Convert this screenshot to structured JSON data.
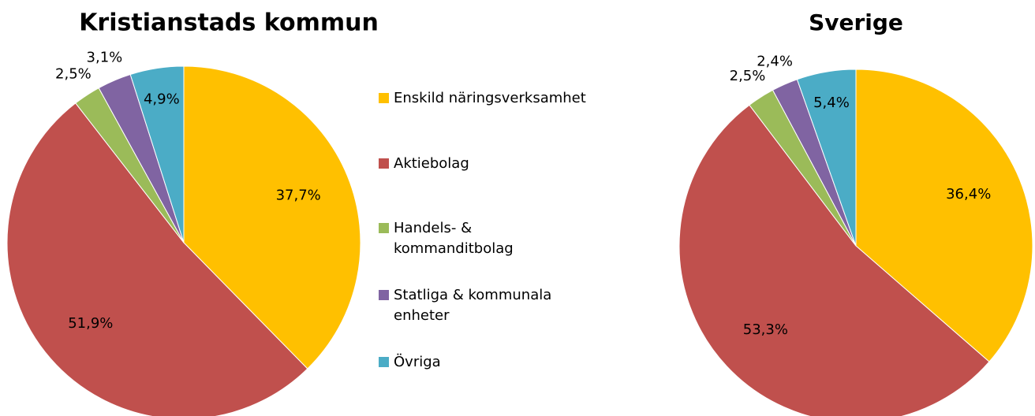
{
  "chart_data": [
    {
      "type": "pie",
      "title": "Kristianstads kommun",
      "values": [
        37.7,
        51.9,
        2.5,
        3.1,
        4.9
      ],
      "value_labels": [
        "37,7%",
        "51,9%",
        "2,5%",
        "3,1%",
        "4,9%"
      ]
    },
    {
      "type": "pie",
      "title": "Sverige",
      "values": [
        36.4,
        53.3,
        2.5,
        2.4,
        5.4
      ],
      "value_labels": [
        "36,4%",
        "53,3%",
        "2,5%",
        "2,4%",
        "5,4%"
      ]
    }
  ],
  "legend": {
    "categories": [
      "Enskild näringsverksamhet",
      "Aktiebolag",
      "Handels- &\nkommanditbolag",
      "Statliga & kommunala\nenheter",
      "Övriga"
    ],
    "colors": [
      "#ffc000",
      "#c0504d",
      "#9bbb59",
      "#8064a2",
      "#4bacc6"
    ]
  }
}
